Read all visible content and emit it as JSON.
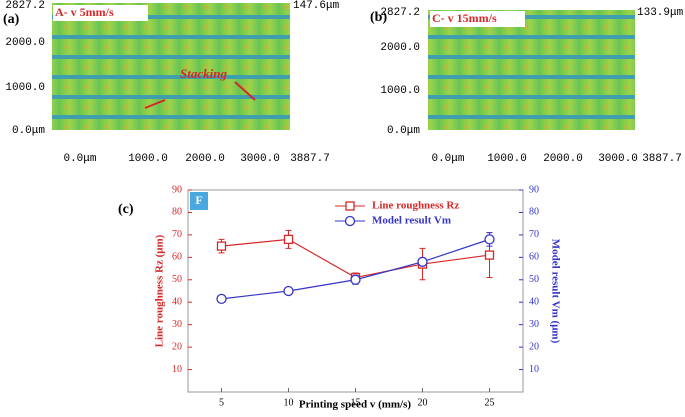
{
  "panels": [
    {
      "label": "(a)",
      "inset_label": "A- v 5mm/s",
      "annotation": "Stacking",
      "scale_max": "147.6μm",
      "y_ticks": [
        "2827.2",
        "2000.0",
        "1000.0",
        "0.0μm"
      ],
      "x_ticks": [
        "0.0μm",
        "1000.0",
        "2000.0",
        "3000.0",
        "3887.7"
      ]
    },
    {
      "label": "(b)",
      "inset_label": "C- v 15mm/s",
      "scale_max": "133.9μm",
      "y_ticks": [
        "2827.2",
        "2000.0",
        "1000.0",
        "0.0μm"
      ],
      "x_ticks": [
        "0.0μm",
        "1000.0",
        "2000.0",
        "3000.0",
        "3887.7"
      ]
    }
  ],
  "chart_data": {
    "type": "line",
    "label": "(c)",
    "tag": "F",
    "x_label": "Printing speed v (mm/s)",
    "y_label": "Line roughness Rz (μm)",
    "y2_label": "Model result Vm (μm)",
    "x": [
      5,
      10,
      15,
      20,
      25
    ],
    "xlim": [
      2.5,
      27.5
    ],
    "xticks": [
      5,
      10,
      15,
      20,
      25
    ],
    "ylim": [
      0,
      90
    ],
    "yticks": [
      10,
      20,
      30,
      40,
      50,
      60,
      70,
      80,
      90
    ],
    "y2lim": [
      0,
      90
    ],
    "y2ticks": [
      10,
      20,
      30,
      40,
      50,
      60,
      70,
      80,
      90
    ],
    "series": [
      {
        "name": "Line roughness Rz",
        "color": "#d62828",
        "marker": "square",
        "values": [
          65,
          68,
          51,
          57,
          61
        ],
        "errors": [
          3,
          4,
          2,
          7,
          10
        ]
      },
      {
        "name": "Model result Vm",
        "color": "#3434c8",
        "marker": "circle",
        "axis": "y2",
        "values": [
          41.5,
          45,
          50,
          58,
          68
        ],
        "errors": [
          null,
          null,
          2,
          null,
          3
        ]
      }
    ]
  }
}
